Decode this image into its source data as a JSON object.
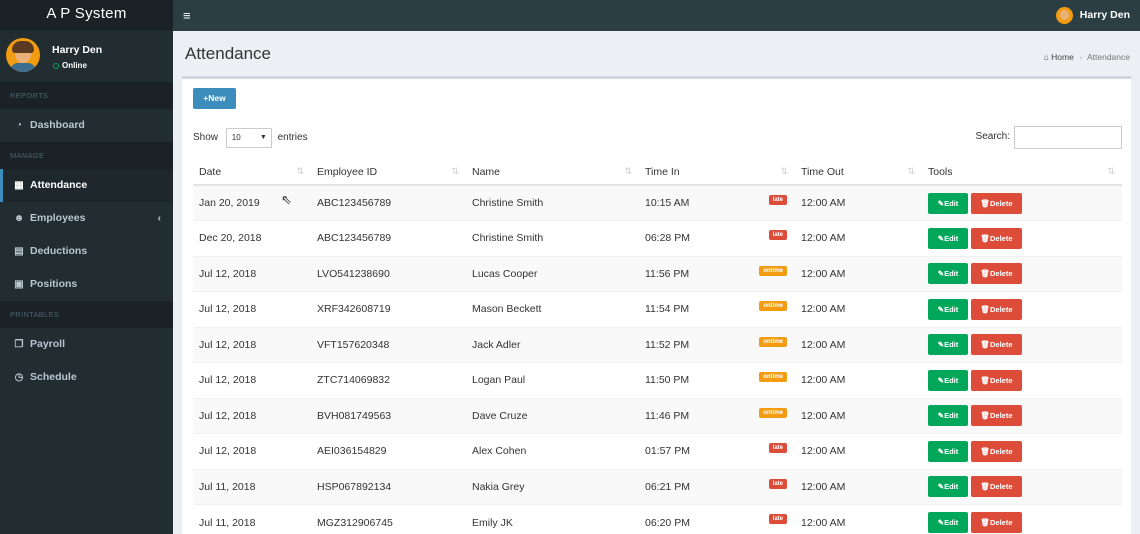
{
  "app": {
    "title": "A P System"
  },
  "user": {
    "name": "Harry Den",
    "status": "Online"
  },
  "topbar": {
    "menu_icon": "≡",
    "user_name": "Harry Den"
  },
  "sidebar": {
    "headers": [
      "REPORTS",
      "MANAGE",
      "PRINTABLES"
    ],
    "items": [
      {
        "label": "Dashboard",
        "icon": "dashboard-icon"
      },
      {
        "label": "Attendance",
        "icon": "calendar-icon"
      },
      {
        "label": "Employees",
        "icon": "users-icon"
      },
      {
        "label": "Deductions",
        "icon": "file-icon"
      },
      {
        "label": "Positions",
        "icon": "suitcase-icon"
      },
      {
        "label": "Payroll",
        "icon": "clipboard-icon"
      },
      {
        "label": "Schedule",
        "icon": "clock-icon"
      }
    ]
  },
  "page": {
    "title": "Attendance",
    "breadcrumb": {
      "home": "Home",
      "current": "Attendance"
    }
  },
  "toolbar": {
    "new_label": "New"
  },
  "entries": {
    "show_label": "Show",
    "value": "10",
    "suffix": "entries"
  },
  "search": {
    "label": "Search:",
    "value": ""
  },
  "table": {
    "columns": [
      "Date",
      "Employee ID",
      "Name",
      "Time In",
      "Time Out",
      "Tools"
    ],
    "edit_label": "Edit",
    "delete_label": "Delete",
    "rows": [
      {
        "date": "Jan 20, 2019",
        "employee_id": "ABC123456789",
        "name": "Christine Smith",
        "time_in": "10:15 AM",
        "status": "late",
        "time_out": "12:00 AM"
      },
      {
        "date": "Dec 20, 2018",
        "employee_id": "ABC123456789",
        "name": "Christine Smith",
        "time_in": "06:28 PM",
        "status": "late",
        "time_out": "12:00 AM"
      },
      {
        "date": "Jul 12, 2018",
        "employee_id": "LVO541238690",
        "name": "Lucas Cooper",
        "time_in": "11:56 PM",
        "status": "ontime",
        "time_out": "12:00 AM"
      },
      {
        "date": "Jul 12, 2018",
        "employee_id": "XRF342608719",
        "name": "Mason Beckett",
        "time_in": "11:54 PM",
        "status": "ontime",
        "time_out": "12:00 AM"
      },
      {
        "date": "Jul 12, 2018",
        "employee_id": "VFT157620348",
        "name": "Jack Adler",
        "time_in": "11:52 PM",
        "status": "ontime",
        "time_out": "12:00 AM"
      },
      {
        "date": "Jul 12, 2018",
        "employee_id": "ZTC714069832",
        "name": "Logan Paul",
        "time_in": "11:50 PM",
        "status": "ontime",
        "time_out": "12:00 AM"
      },
      {
        "date": "Jul 12, 2018",
        "employee_id": "BVH081749563",
        "name": "Dave Cruze",
        "time_in": "11:46 PM",
        "status": "ontime",
        "time_out": "12:00 AM"
      },
      {
        "date": "Jul 12, 2018",
        "employee_id": "AEI036154829",
        "name": "Alex Cohen",
        "time_in": "01:57 PM",
        "status": "late",
        "time_out": "12:00 AM"
      },
      {
        "date": "Jul 11, 2018",
        "employee_id": "HSP067892134",
        "name": "Nakia Grey",
        "time_in": "06:21 PM",
        "status": "late",
        "time_out": "12:00 AM"
      },
      {
        "date": "Jul 11, 2018",
        "employee_id": "MGZ312906745",
        "name": "Emily JK",
        "time_in": "06:20 PM",
        "status": "late",
        "time_out": "12:00 AM"
      }
    ]
  },
  "colors": {
    "sidebar": "#222d32",
    "topbar": "#2b3e44",
    "primary": "#3c8dbc",
    "success": "#00a65a",
    "danger": "#dd4b39",
    "warning": "#f39c12"
  }
}
